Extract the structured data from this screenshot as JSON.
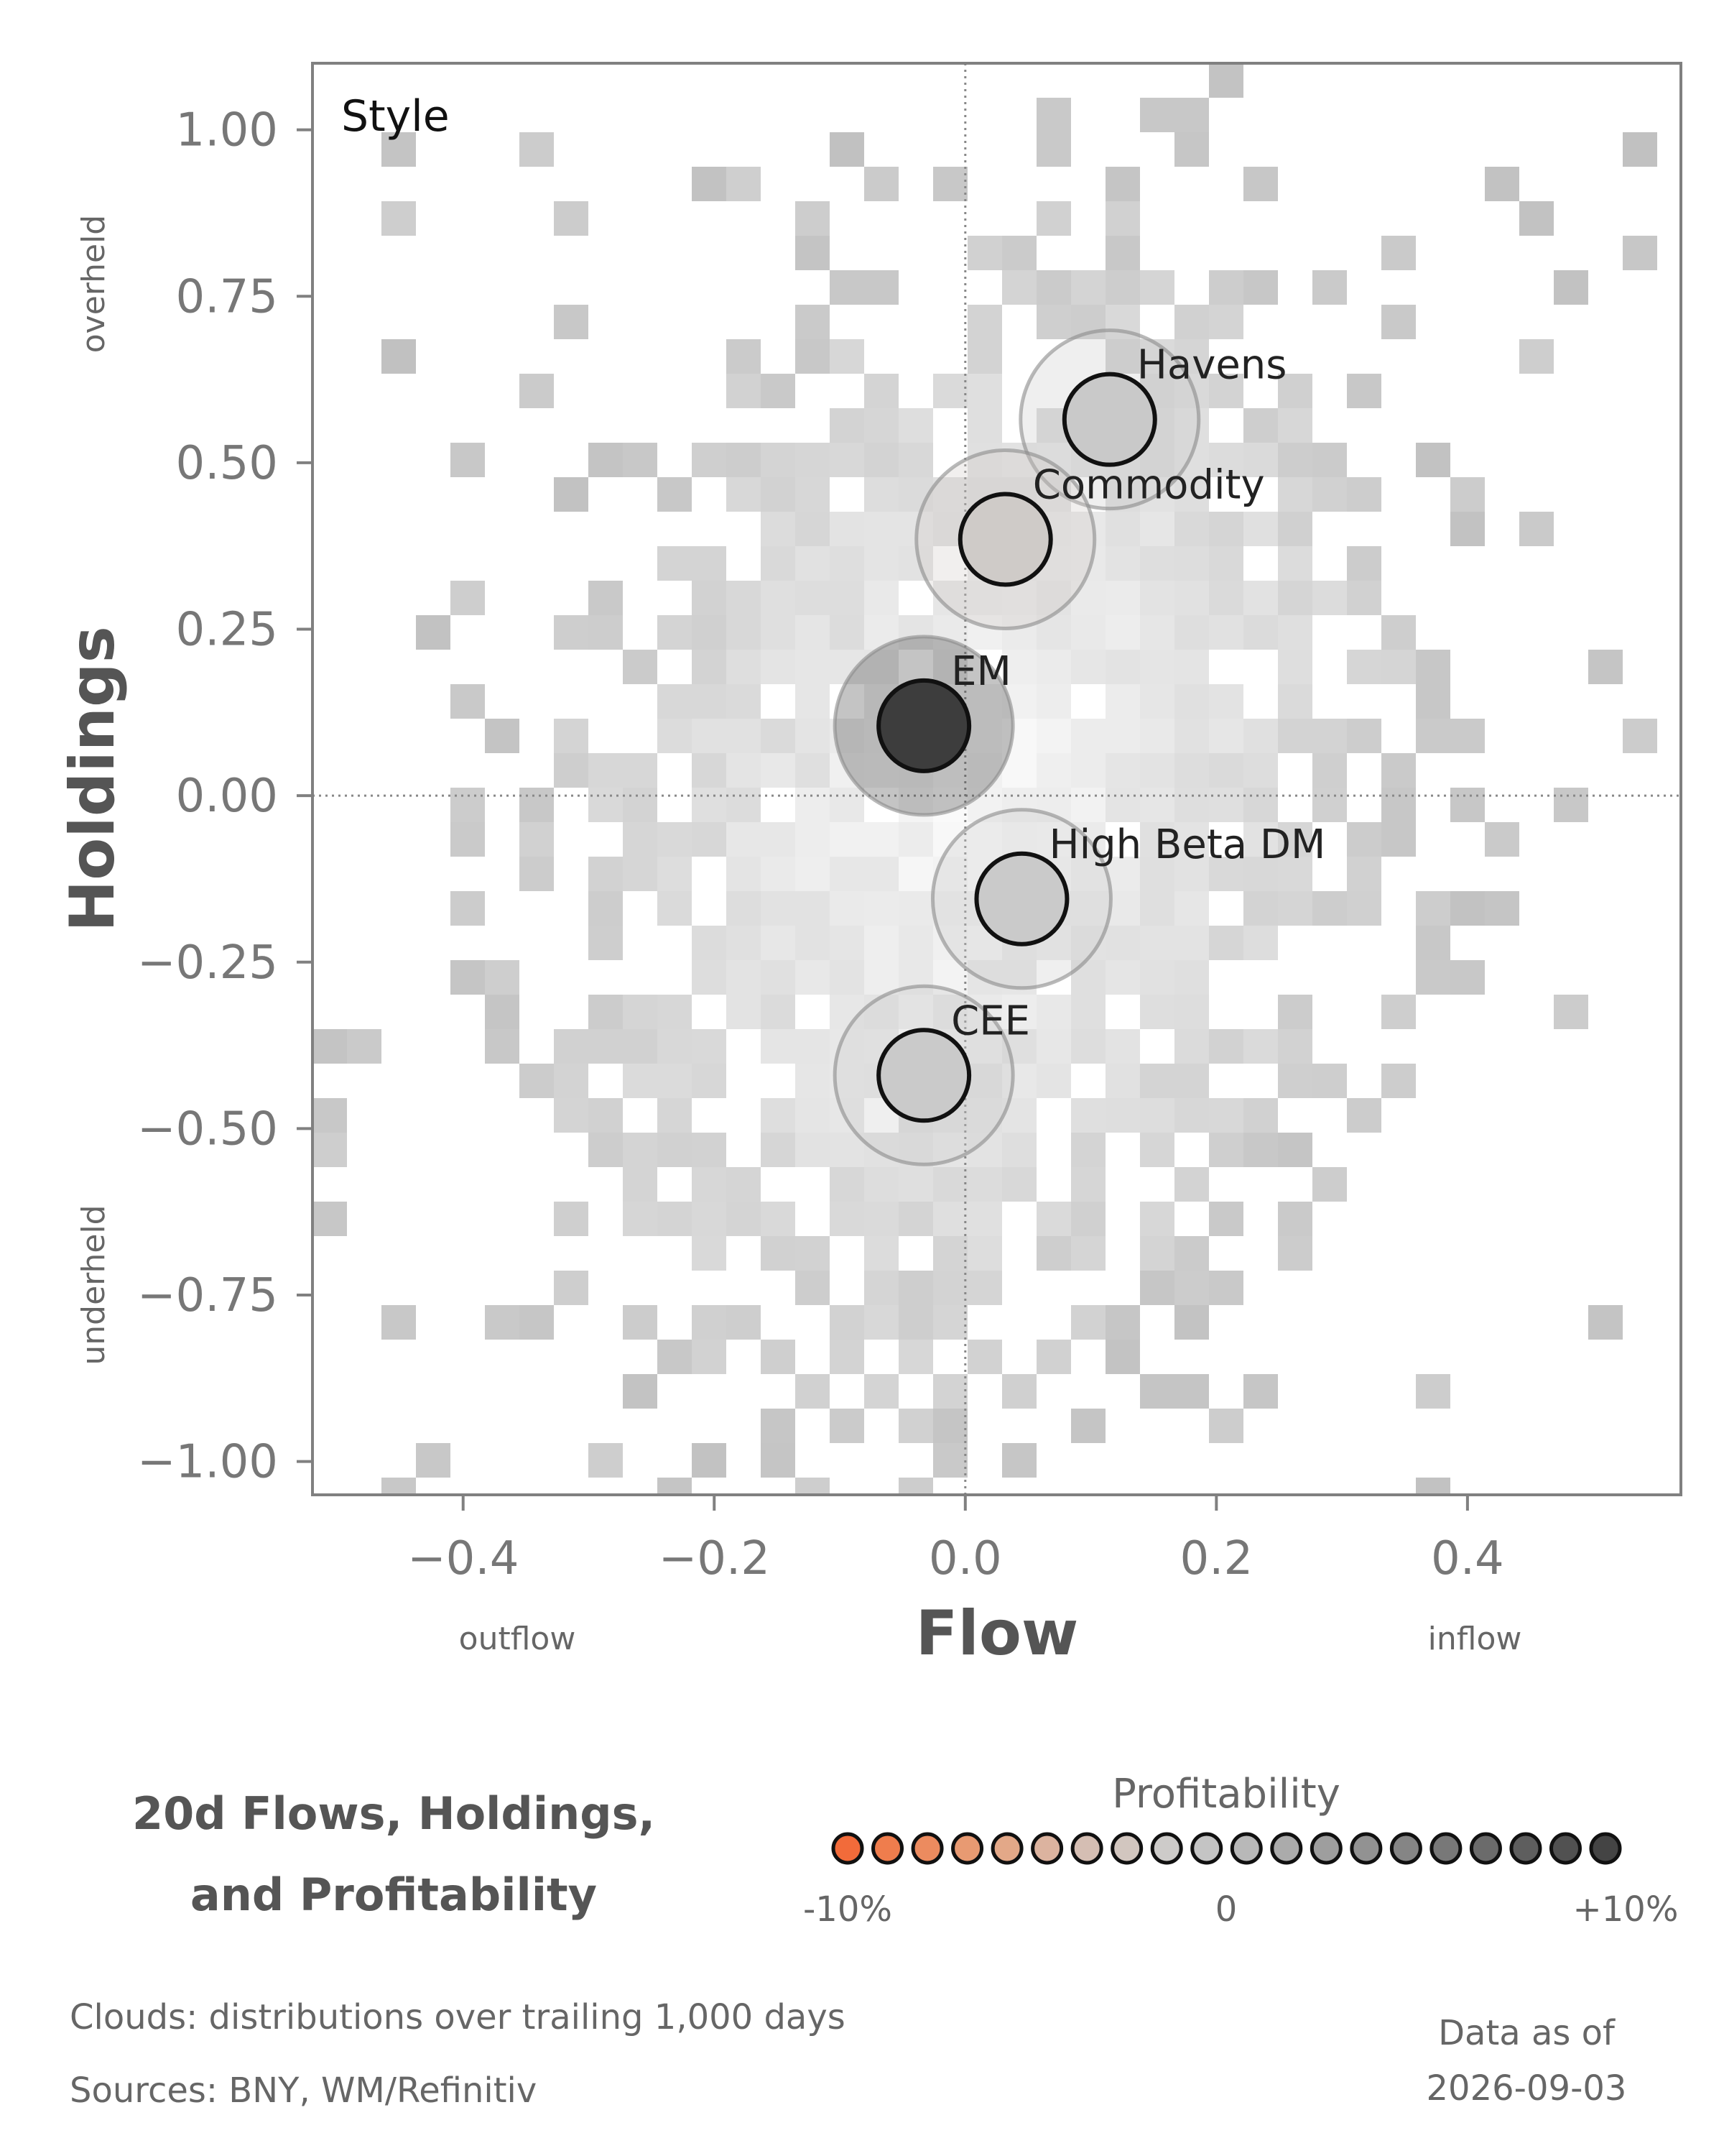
{
  "chart_data": {
    "type": "scatter",
    "panel_label": "Style",
    "xlabel": "Flow",
    "ylabel": "Holdings",
    "x_side_labels": {
      "left": "outflow",
      "right": "inflow"
    },
    "y_side_labels": {
      "top": "overheld",
      "bottom": "underheld"
    },
    "xlim": [
      -0.52,
      0.57
    ],
    "ylim": [
      -1.05,
      1.1
    ],
    "x_ticks": [
      -0.4,
      -0.2,
      0.0,
      0.2,
      0.4
    ],
    "x_tick_labels": [
      "−0.4",
      "−0.2",
      "0.0",
      "0.2",
      "0.4"
    ],
    "y_ticks": [
      1.0,
      0.75,
      0.5,
      0.25,
      0.0,
      -0.25,
      -0.5,
      -0.75,
      -1.0
    ],
    "y_tick_labels": [
      "1.00",
      "0.75",
      "0.50",
      "0.25",
      "0.00",
      "−0.25",
      "−0.50",
      "−0.75",
      "−1.00"
    ],
    "reference_lines": {
      "x": 0,
      "y": 0
    },
    "background": "2D histogram density clouds (grey)",
    "points": [
      {
        "name": "Havens",
        "flow": 0.115,
        "holdings": 0.565,
        "profitability": 0.0,
        "color": "#c9c9c9"
      },
      {
        "name": "Commodity",
        "flow": 0.032,
        "holdings": 0.385,
        "profitability": -0.3,
        "color": "#cfcbc8"
      },
      {
        "name": "EM",
        "flow": -0.033,
        "holdings": 0.105,
        "profitability": 10.0,
        "color": "#3d3d3d"
      },
      {
        "name": "High Beta DM",
        "flow": 0.045,
        "holdings": -0.155,
        "profitability": 0.0,
        "color": "#cacaca"
      },
      {
        "name": "CEE",
        "flow": -0.033,
        "holdings": -0.42,
        "profitability": 0.0,
        "color": "#cacaca"
      }
    ]
  },
  "title_lines": [
    "20d Flows, Holdings,",
    "and Profitability"
  ],
  "legend": {
    "title": "Profitability",
    "min_label": "-10%",
    "mid_label": "0",
    "max_label": "+10%",
    "swatches": [
      "#f26b3a",
      "#ef7d4d",
      "#ec8b5f",
      "#e89a72",
      "#e3a888",
      "#dcb39f",
      "#d5beb3",
      "#d2c6bf",
      "#cdcbc9",
      "#c4c4c4",
      "#b8b8b8",
      "#ababab",
      "#9e9e9e",
      "#929292",
      "#858585",
      "#787878",
      "#6b6b6b",
      "#5e5e5e",
      "#515151",
      "#444444"
    ]
  },
  "footer": {
    "clouds_note": "Clouds:  distributions over trailing 1,000 days",
    "sources_note": "Sources:  BNY, WM/Refinitiv",
    "data_as_of_label": "Data as of",
    "data_as_of_date": "2026-09-03"
  }
}
